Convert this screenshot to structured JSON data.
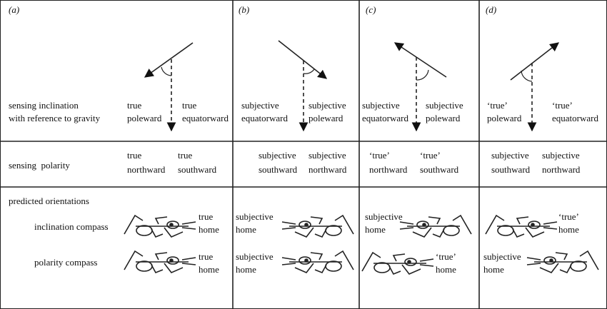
{
  "panel_labels": [
    "(a)",
    "(b)",
    "(c)",
    "(d)"
  ],
  "inclination": {
    "row_label": [
      "sensing inclination",
      "with reference to gravity"
    ],
    "panels": [
      [
        [
          "true",
          "poleward"
        ],
        [
          "true",
          "equatorward"
        ]
      ],
      [
        [
          "subjective",
          "equatorward"
        ],
        [
          "subjective",
          "poleward"
        ]
      ],
      [
        [
          "subjective",
          "equatorward"
        ],
        [
          "subjective",
          "poleward"
        ]
      ],
      [
        [
          "‘true’",
          "poleward"
        ],
        [
          "‘true’",
          "equatorward"
        ]
      ]
    ]
  },
  "polarity": {
    "row_label": [
      "sensing  polarity"
    ],
    "panels": [
      [
        [
          "true",
          "northward"
        ],
        [
          "true",
          "southward"
        ]
      ],
      [
        [
          "subjective",
          "southward"
        ],
        [
          "subjective",
          "northward"
        ]
      ],
      [
        [
          "‘true’",
          "northward"
        ],
        [
          "‘true’",
          "southward"
        ]
      ],
      [
        [
          "subjective",
          "southward"
        ],
        [
          "subjective",
          "northward"
        ]
      ]
    ]
  },
  "orientations": {
    "row_label": [
      "predicted orientations"
    ],
    "inclination_compass": {
      "label": "inclination compass",
      "panels": [
        [
          "true",
          "home"
        ],
        [
          "subjective",
          "home"
        ],
        [
          "subjective",
          "home"
        ],
        [
          "‘true’",
          "home"
        ]
      ]
    },
    "polarity_compass": {
      "label": "polarity compass",
      "panels": [
        [
          "true",
          "home"
        ],
        [
          "subjective",
          "home"
        ],
        [
          "‘true’",
          "home"
        ],
        [
          "subjective",
          "home"
        ]
      ]
    }
  }
}
